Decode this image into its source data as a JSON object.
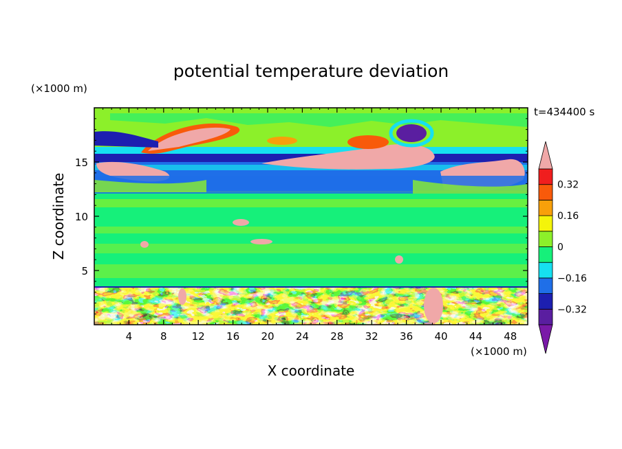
{
  "chart_data": {
    "type": "heatmap",
    "title": "potential temperature deviation",
    "xlabel": "X coordinate",
    "ylabel": "Z coordinate",
    "x_unit": "(×1000 m)",
    "y_unit": "(×1000 m)",
    "time_label": "t=434400 s",
    "xlim": [
      0,
      50
    ],
    "ylim": [
      0,
      20
    ],
    "x_ticks": [
      4,
      8,
      12,
      16,
      20,
      24,
      28,
      32,
      36,
      40,
      44,
      48
    ],
    "y_ticks": [
      5,
      10,
      15
    ],
    "colorbar": {
      "colors": [
        "#7a1aa8",
        "#5a1ea0",
        "#1d1fb0",
        "#1f6fe8",
        "#16e0f0",
        "#16f07a",
        "#8cf02a",
        "#f4f40a",
        "#f8a00a",
        "#f85a0a",
        "#f01e1e",
        "#f0a8a8"
      ],
      "labels": [
        "0.32",
        "0.16",
        "0",
        "-0.16",
        "-0.32"
      ],
      "label_values": [
        0.32,
        0.16,
        0,
        -0.16,
        -0.32
      ],
      "extends": "both"
    },
    "field_description_levels": {
      "upper_band_warm": "pink/orange patches near z 13-19",
      "stable_layer_cold": "blue band z 11.5-14.5",
      "mid_troposphere": "near 0 (green) z 3.5-11.5",
      "boundary_layer": "mixed turbulent values z 0-3.5"
    }
  }
}
